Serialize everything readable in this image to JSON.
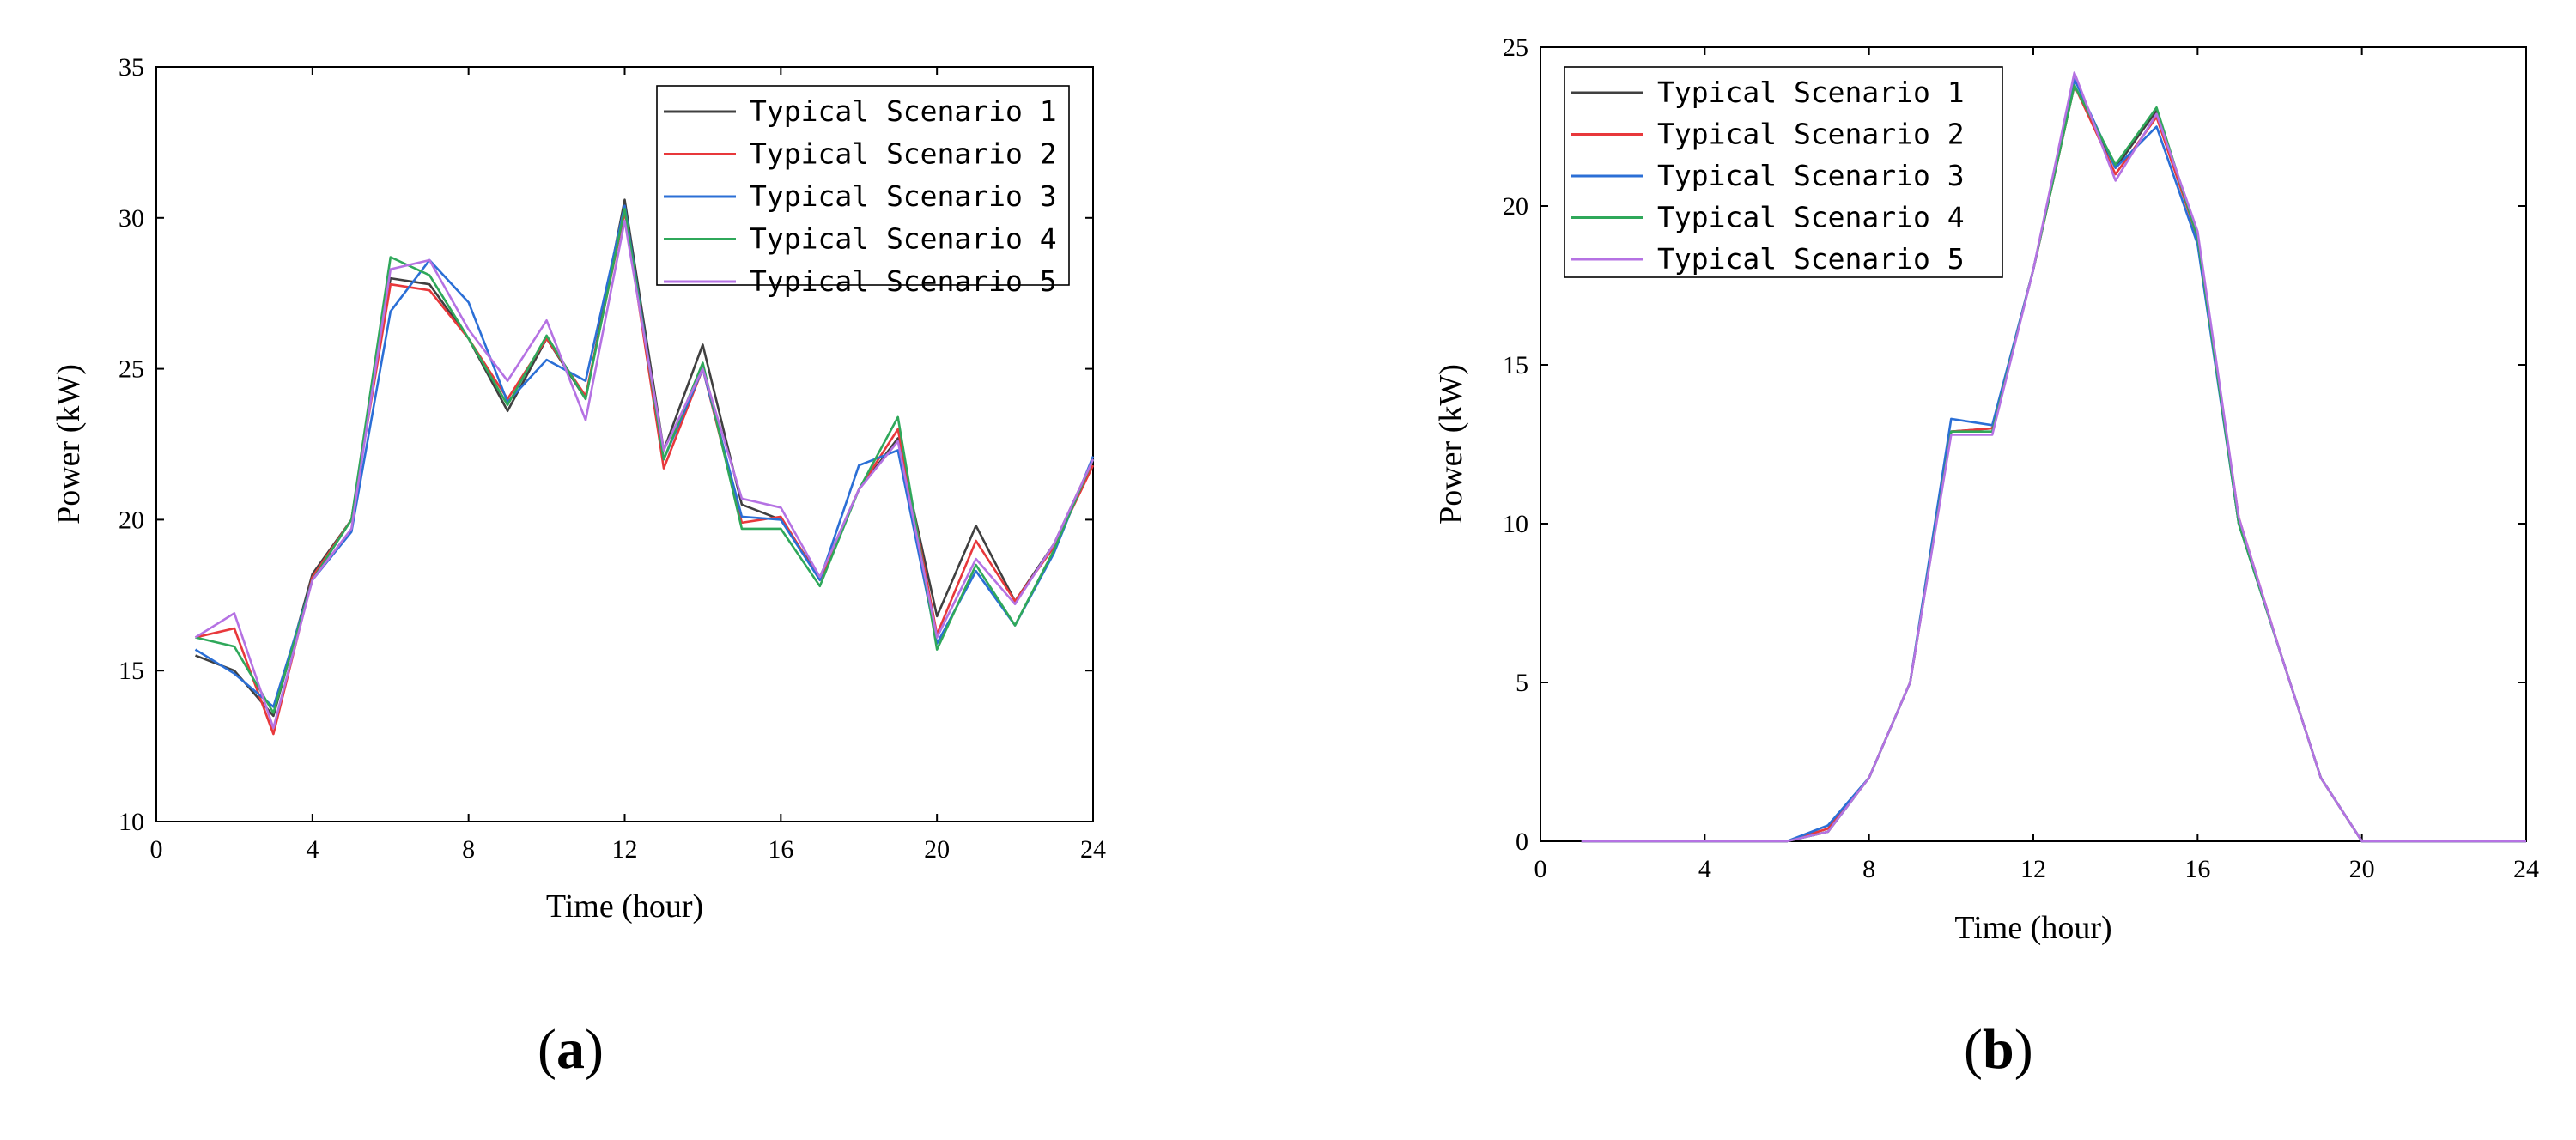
{
  "panels": [
    {
      "label_pre": "(",
      "label_letter": "a",
      "label_post": ")"
    },
    {
      "label_pre": "(",
      "label_letter": "b",
      "label_post": ")"
    }
  ],
  "chart_data": [
    {
      "type": "line",
      "title": "",
      "xlabel": "Time (hour)",
      "ylabel": "Power (kW)",
      "xlim": [
        0,
        24
      ],
      "ylim": [
        10,
        35
      ],
      "xticks": [
        0,
        4,
        8,
        12,
        16,
        20,
        24
      ],
      "yticks": [
        10,
        15,
        20,
        25,
        30,
        35
      ],
      "grid": false,
      "legend_position": "top-right",
      "x": [
        1,
        2,
        3,
        4,
        5,
        6,
        7,
        8,
        9,
        10,
        11,
        12,
        13,
        14,
        15,
        16,
        17,
        18,
        19,
        20,
        21,
        22,
        23,
        24
      ],
      "series": [
        {
          "name": "Typical Scenario 1",
          "color": "#404040",
          "values": [
            15.5,
            15.0,
            13.5,
            18.2,
            20.0,
            28.0,
            27.8,
            26.0,
            23.6,
            26.0,
            24.0,
            30.6,
            22.3,
            25.8,
            20.5,
            20.0,
            18.1,
            21.0,
            22.7,
            16.8,
            19.8,
            17.3,
            19.2,
            22.0
          ]
        },
        {
          "name": "Typical Scenario 2",
          "color": "#e8383b",
          "values": [
            16.1,
            16.4,
            12.9,
            18.1,
            20.0,
            27.8,
            27.6,
            26.0,
            24.0,
            26.0,
            24.1,
            30.2,
            21.7,
            25.0,
            19.9,
            20.1,
            18.0,
            21.0,
            23.0,
            16.2,
            19.3,
            17.3,
            19.1,
            21.8
          ]
        },
        {
          "name": "Typical Scenario 3",
          "color": "#2b6fd6",
          "values": [
            15.7,
            14.9,
            13.8,
            18.0,
            19.6,
            26.9,
            28.6,
            27.2,
            23.9,
            25.3,
            24.6,
            30.4,
            22.0,
            25.0,
            20.1,
            20.0,
            18.0,
            21.8,
            22.3,
            15.9,
            18.3,
            16.5,
            18.9,
            22.1
          ]
        },
        {
          "name": "Typical Scenario 4",
          "color": "#2fa85a",
          "values": [
            16.1,
            15.8,
            13.6,
            18.0,
            20.0,
            28.7,
            28.1,
            26.0,
            23.8,
            26.1,
            24.0,
            30.3,
            22.0,
            25.2,
            19.7,
            19.7,
            17.8,
            21.0,
            23.4,
            15.7,
            18.5,
            16.5,
            19.0,
            22.0
          ]
        },
        {
          "name": "Typical Scenario 5",
          "color": "#b572e3",
          "values": [
            16.1,
            16.9,
            13.1,
            18.0,
            19.7,
            28.3,
            28.6,
            26.3,
            24.6,
            26.6,
            23.3,
            29.9,
            22.3,
            25.0,
            20.7,
            20.4,
            18.1,
            21.0,
            22.6,
            16.1,
            18.7,
            17.2,
            19.2,
            22.0
          ]
        }
      ]
    },
    {
      "type": "line",
      "title": "",
      "xlabel": "Time (hour)",
      "ylabel": "Power (kW)",
      "xlim": [
        0,
        24
      ],
      "ylim": [
        0,
        25
      ],
      "xticks": [
        0,
        4,
        8,
        12,
        16,
        20,
        24
      ],
      "yticks": [
        0,
        5,
        10,
        15,
        20,
        25
      ],
      "grid": false,
      "legend_position": "top-left",
      "x": [
        1,
        2,
        3,
        4,
        5,
        6,
        7,
        8,
        9,
        10,
        11,
        12,
        13,
        14,
        15,
        16,
        17,
        18,
        19,
        20,
        21,
        22,
        23,
        24
      ],
      "series": [
        {
          "name": "Typical Scenario 1",
          "color": "#404040",
          "values": [
            0,
            0,
            0,
            0,
            0,
            0,
            0.3,
            2.0,
            5.0,
            12.9,
            13.0,
            18.0,
            23.8,
            21.2,
            23.0,
            19.0,
            10.0,
            6.0,
            2.0,
            0,
            0,
            0,
            0,
            0
          ]
        },
        {
          "name": "Typical Scenario 2",
          "color": "#e8383b",
          "values": [
            0,
            0,
            0,
            0,
            0,
            0,
            0.4,
            2.0,
            5.0,
            12.9,
            13.0,
            18.0,
            23.8,
            21.0,
            22.8,
            19.0,
            10.2,
            6.0,
            2.0,
            0,
            0,
            0,
            0,
            0
          ]
        },
        {
          "name": "Typical Scenario 3",
          "color": "#2b6fd6",
          "values": [
            0,
            0,
            0,
            0,
            0,
            0,
            0.5,
            2.0,
            5.0,
            13.3,
            13.1,
            18.0,
            24.0,
            21.2,
            22.5,
            18.8,
            10.0,
            6.0,
            2.0,
            0,
            0,
            0,
            0,
            0
          ]
        },
        {
          "name": "Typical Scenario 4",
          "color": "#2fa85a",
          "values": [
            0,
            0,
            0,
            0,
            0,
            0,
            0.3,
            2.0,
            5.0,
            12.9,
            12.9,
            18.0,
            23.8,
            21.3,
            23.1,
            19.0,
            10.0,
            6.0,
            2.0,
            0,
            0,
            0,
            0,
            0
          ]
        },
        {
          "name": "Typical Scenario 5",
          "color": "#b572e3",
          "values": [
            0,
            0,
            0,
            0,
            0,
            0,
            0.3,
            2.0,
            5.0,
            12.8,
            12.8,
            18.0,
            24.2,
            20.8,
            22.9,
            19.2,
            10.2,
            6.0,
            2.0,
            0,
            0,
            0,
            0,
            0
          ]
        }
      ]
    }
  ]
}
